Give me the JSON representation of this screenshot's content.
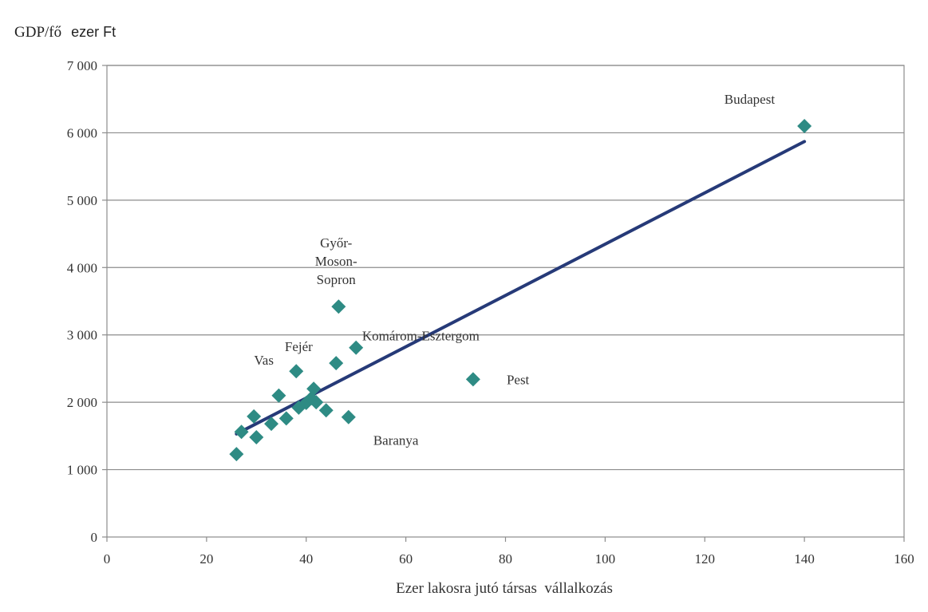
{
  "chart_data": {
    "type": "scatter",
    "title": "",
    "ylabel_part1": "GDP/fő",
    "ylabel_part2": "ezer Ft",
    "xlabel": "Ezer lakosra jutó társas  vállalkozás",
    "xlim": [
      0,
      160
    ],
    "ylim": [
      0,
      7000
    ],
    "x_ticks": [
      0,
      20,
      40,
      60,
      80,
      100,
      120,
      140,
      160
    ],
    "y_ticks": [
      0,
      1000,
      2000,
      3000,
      4000,
      5000,
      6000,
      7000
    ],
    "x_tick_labels": [
      "0",
      "20",
      "40",
      "60",
      "80",
      "100",
      "120",
      "140",
      "160"
    ],
    "y_tick_labels": [
      "0",
      "1 000",
      "2 000",
      "3 000",
      "4 000",
      "5 000",
      "6 000",
      "7 000"
    ],
    "grid": "horizontal",
    "legend": "none",
    "marker_color": "#2e8b84",
    "trend_color": "#263a78",
    "points": [
      {
        "x": 140,
        "y": 6100,
        "label": "Budapest"
      },
      {
        "x": 46.5,
        "y": 3420,
        "label": "Győr-Moson-Sopron"
      },
      {
        "x": 50,
        "y": 2810,
        "label": "Komárom-Esztergom"
      },
      {
        "x": 73.5,
        "y": 2340,
        "label": "Pest"
      },
      {
        "x": 46,
        "y": 2580,
        "label": "Fejér"
      },
      {
        "x": 38,
        "y": 2460,
        "label": "Vas"
      },
      {
        "x": 48.5,
        "y": 1780,
        "label": "Baranya"
      },
      {
        "x": 26,
        "y": 1230
      },
      {
        "x": 27,
        "y": 1560
      },
      {
        "x": 29.5,
        "y": 1790
      },
      {
        "x": 30,
        "y": 1480
      },
      {
        "x": 33,
        "y": 1680
      },
      {
        "x": 34.5,
        "y": 2100
      },
      {
        "x": 36,
        "y": 1760
      },
      {
        "x": 38.5,
        "y": 1920
      },
      {
        "x": 40,
        "y": 1990
      },
      {
        "x": 41,
        "y": 2060
      },
      {
        "x": 41.5,
        "y": 2200
      },
      {
        "x": 42,
        "y": 2000
      },
      {
        "x": 44,
        "y": 1880
      }
    ],
    "annotations": [
      {
        "lines": [
          "Budapest"
        ],
        "x": 129,
        "y": 6430
      },
      {
        "lines": [
          "Győr-",
          "Moson-",
          "Sopron"
        ],
        "x": 46,
        "y": 4300
      },
      {
        "lines": [
          "Komárom-Esztergom"
        ],
        "x": 63,
        "y": 2920
      },
      {
        "lines": [
          "Pest"
        ],
        "x": 82.5,
        "y": 2270
      },
      {
        "lines": [
          "Fejér"
        ],
        "x": 38.5,
        "y": 2760
      },
      {
        "lines": [
          "Vas"
        ],
        "x": 31.5,
        "y": 2560
      },
      {
        "lines": [
          "Baranya"
        ],
        "x": 58,
        "y": 1370
      }
    ],
    "trendline": {
      "x": [
        26,
        140
      ],
      "y": [
        1530,
        5870
      ]
    }
  }
}
